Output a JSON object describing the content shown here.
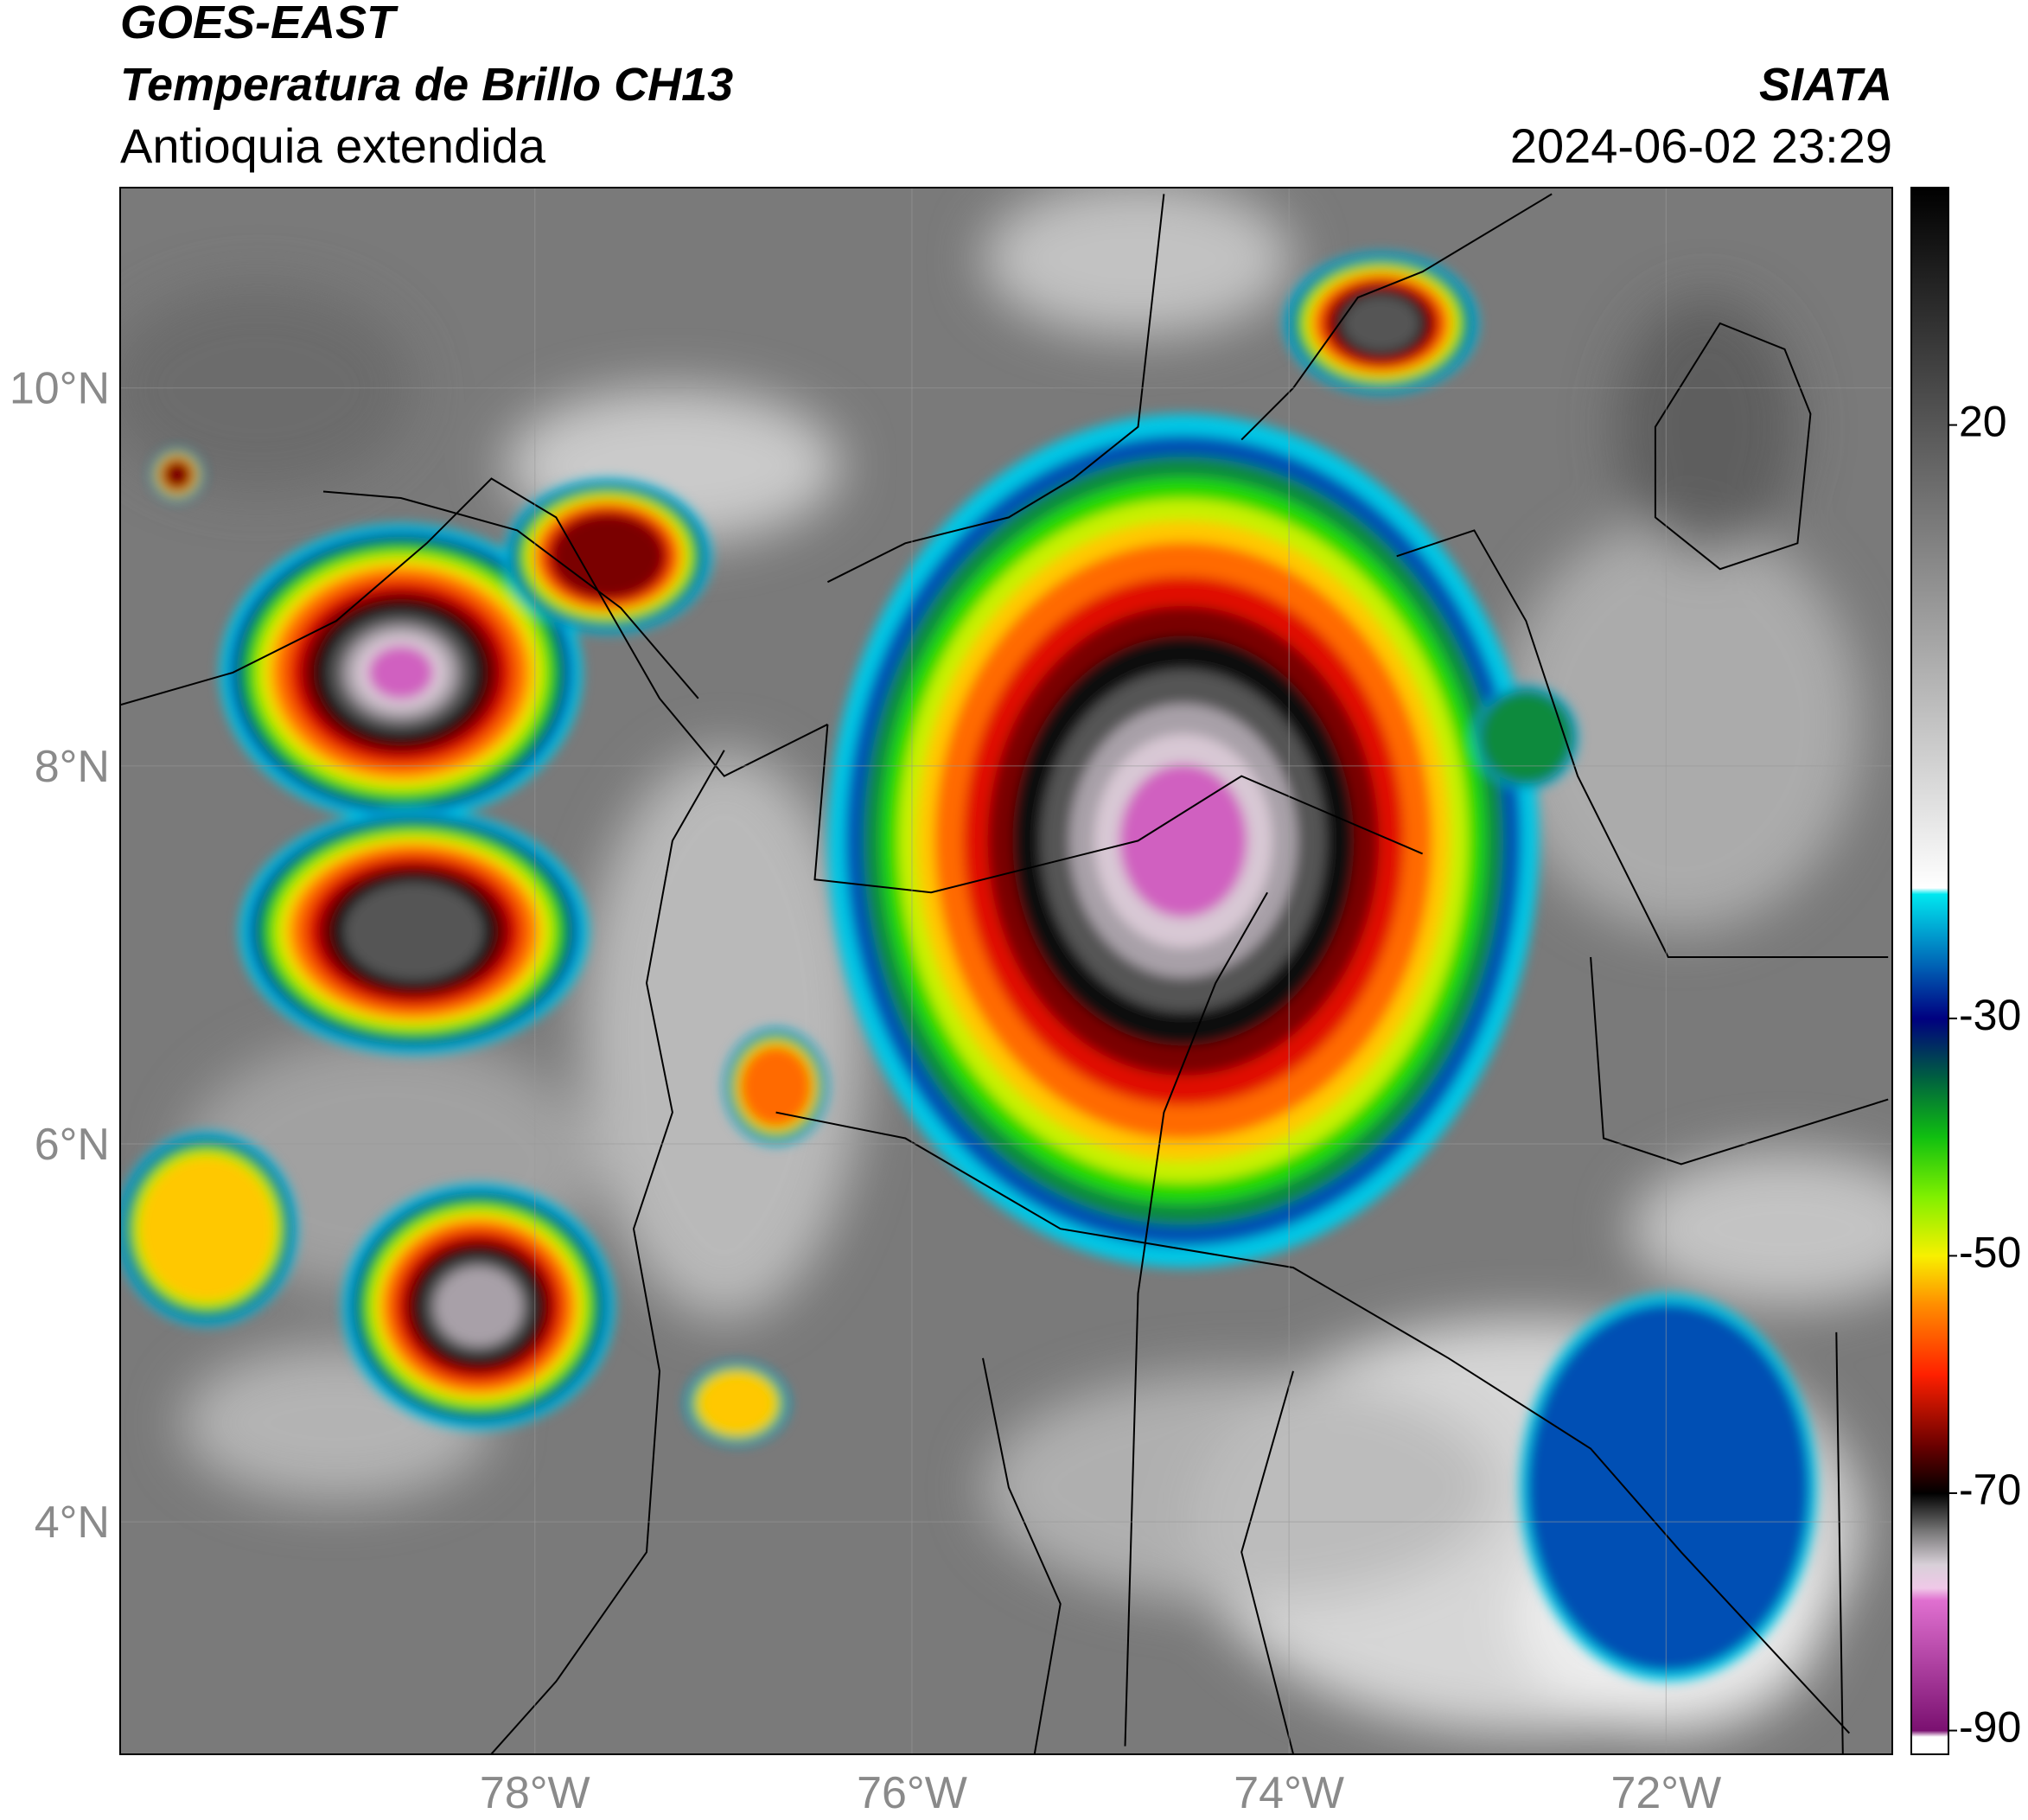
{
  "header": {
    "title": "GOES-EAST",
    "subtitle": "Temperatura de Brillo CH13",
    "region": "Antioquia extendida",
    "source": "SIATA",
    "datetime": "2024-06-02 23:29"
  },
  "map": {
    "lon_range": [
      -80.2,
      -70.8
    ],
    "lat_range": [
      2.77,
      11.06
    ],
    "lon_ticks": [
      {
        "value": -78,
        "label": "78°W"
      },
      {
        "value": -76,
        "label": "76°W"
      },
      {
        "value": -74,
        "label": "74°W"
      },
      {
        "value": -72,
        "label": "72°W"
      }
    ],
    "lat_ticks": [
      {
        "value": 10,
        "label": "10°N"
      },
      {
        "value": 8,
        "label": "8°N"
      },
      {
        "value": 6,
        "label": "6°N"
      },
      {
        "value": 4,
        "label": "4°N"
      }
    ],
    "grid": true
  },
  "colorbar": {
    "lim": [
      -92,
      40
    ],
    "ticks": [
      20,
      -30,
      -50,
      -70,
      -90
    ],
    "stops": [
      {
        "value": -92,
        "color": "#ffffff"
      },
      {
        "value": -90.5,
        "color": "#ffffff"
      },
      {
        "value": -90,
        "color": "#7a1070"
      },
      {
        "value": -79,
        "color": "#e070d0"
      },
      {
        "value": -78,
        "color": "#f0c8e8"
      },
      {
        "value": -76,
        "color": "#d8d0d8"
      },
      {
        "value": -73,
        "color": "#707070"
      },
      {
        "value": -70,
        "color": "#000000"
      },
      {
        "value": -66,
        "color": "#6a0000"
      },
      {
        "value": -60,
        "color": "#ff2000"
      },
      {
        "value": -54,
        "color": "#ff9000"
      },
      {
        "value": -50,
        "color": "#f8f000"
      },
      {
        "value": -45,
        "color": "#80f000"
      },
      {
        "value": -40,
        "color": "#10c010"
      },
      {
        "value": -35,
        "color": "#006040"
      },
      {
        "value": -30,
        "color": "#000080"
      },
      {
        "value": -26,
        "color": "#0058b0"
      },
      {
        "value": -19.5,
        "color": "#00e8f0"
      },
      {
        "value": -19,
        "color": "#ffffff"
      },
      {
        "value": 40,
        "color": "#000000"
      }
    ]
  }
}
